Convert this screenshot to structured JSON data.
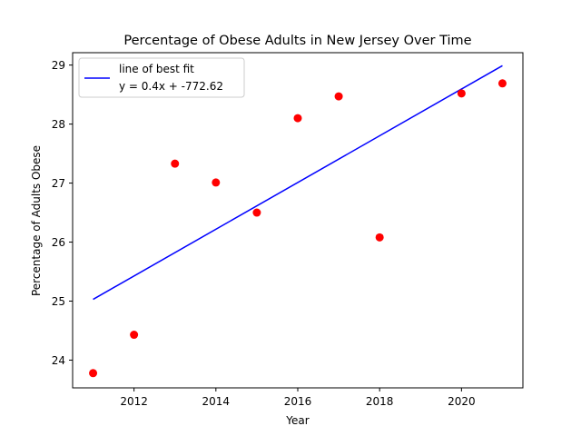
{
  "chart_data": {
    "type": "scatter",
    "title": "Percentage of Obese Adults in New Jersey Over Time",
    "xlabel": "Year",
    "ylabel": "Percentage of Adults Obese",
    "xlim": [
      2010.5,
      2021.5
    ],
    "ylim": [
      23.53,
      29.21
    ],
    "x_ticks": [
      2012,
      2014,
      2016,
      2018,
      2020
    ],
    "y_ticks": [
      24,
      25,
      26,
      27,
      28,
      29
    ],
    "grid": false,
    "legend_placement": "top-left",
    "points": [
      {
        "x": 2011,
        "y": 23.78
      },
      {
        "x": 2012,
        "y": 24.43
      },
      {
        "x": 2013,
        "y": 27.33
      },
      {
        "x": 2014,
        "y": 27.01
      },
      {
        "x": 2015,
        "y": 26.5
      },
      {
        "x": 2016,
        "y": 28.1
      },
      {
        "x": 2017,
        "y": 28.47
      },
      {
        "x": 2018,
        "y": 26.08
      },
      {
        "x": 2020,
        "y": 28.52
      },
      {
        "x": 2021,
        "y": 28.69
      }
    ],
    "points_color": "#ff0000",
    "fit_line": {
      "name": "line of best fit",
      "equation": "y = 0.4x + -772.62",
      "color": "#0000ff",
      "start": {
        "x": 2011,
        "y": 25.03
      },
      "end": {
        "x": 2021,
        "y": 28.99
      }
    }
  }
}
